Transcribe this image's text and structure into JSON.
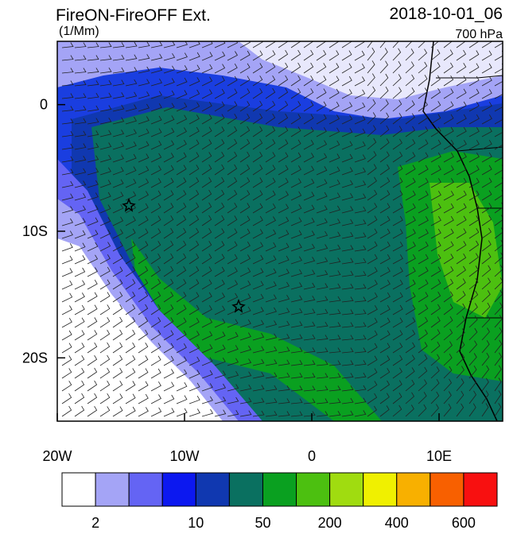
{
  "chart_data": {
    "type": "map",
    "title": "FireON-FireOFF Ext.",
    "date": "2018-10-01_06",
    "units": "(1/Mm)",
    "level": "700 hPa",
    "xlim": [
      -20,
      15
    ],
    "ylim": [
      -25,
      5
    ],
    "xticks": [
      {
        "value": -20,
        "label": "20W"
      },
      {
        "value": -10,
        "label": "10W"
      },
      0,
      {
        "value": 10,
        "label": "10E"
      }
    ],
    "yticks": [
      0,
      {
        "value": -10,
        "label": "10S"
      },
      {
        "value": -20,
        "label": "20S"
      }
    ],
    "colorbar": {
      "colors": [
        "#ffffff",
        "#a4a4f6",
        "#6464f4",
        "#0c18f0",
        "#1038b0",
        "#0a7060",
        "#0aa020",
        "#4cc010",
        "#a0dc10",
        "#f0f000",
        "#f8b000",
        "#f86000",
        "#f81010"
      ],
      "labels": [
        "2",
        "10",
        "50",
        "200",
        "400",
        "600"
      ]
    }
  }
}
